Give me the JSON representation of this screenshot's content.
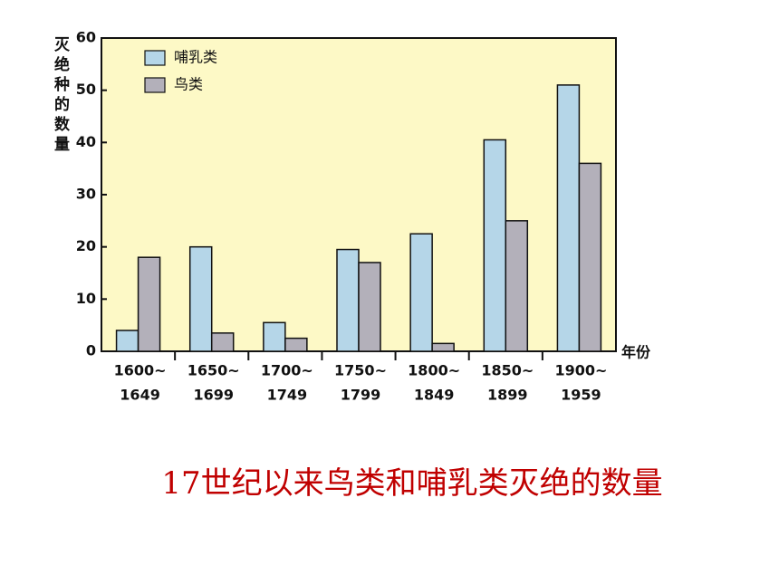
{
  "chart_data": {
    "type": "bar",
    "title": "17世纪以来鸟类和哺乳类灭绝的数量",
    "y_label": "灭绝种的数量",
    "x_label": "年份",
    "categories": [
      [
        "1600~",
        "1649"
      ],
      [
        "1650~",
        "1699"
      ],
      [
        "1700~",
        "1749"
      ],
      [
        "1750~",
        "1799"
      ],
      [
        "1800~",
        "1849"
      ],
      [
        "1850~",
        "1899"
      ],
      [
        "1900~",
        "1959"
      ]
    ],
    "series": [
      {
        "name": "哺乳类",
        "color": "#b5d6e8",
        "values": [
          4,
          20,
          5.5,
          19.5,
          22.5,
          40.5,
          51
        ]
      },
      {
        "name": "鸟类",
        "color": "#b3b0ba",
        "values": [
          18,
          3.5,
          2.5,
          17,
          1.5,
          25,
          36
        ]
      }
    ],
    "ylim": [
      0,
      60
    ],
    "yticks": [
      0,
      10,
      20,
      30,
      40,
      50,
      60
    ],
    "grid": false,
    "legend": "upper left",
    "background": "#fdf9c6"
  }
}
